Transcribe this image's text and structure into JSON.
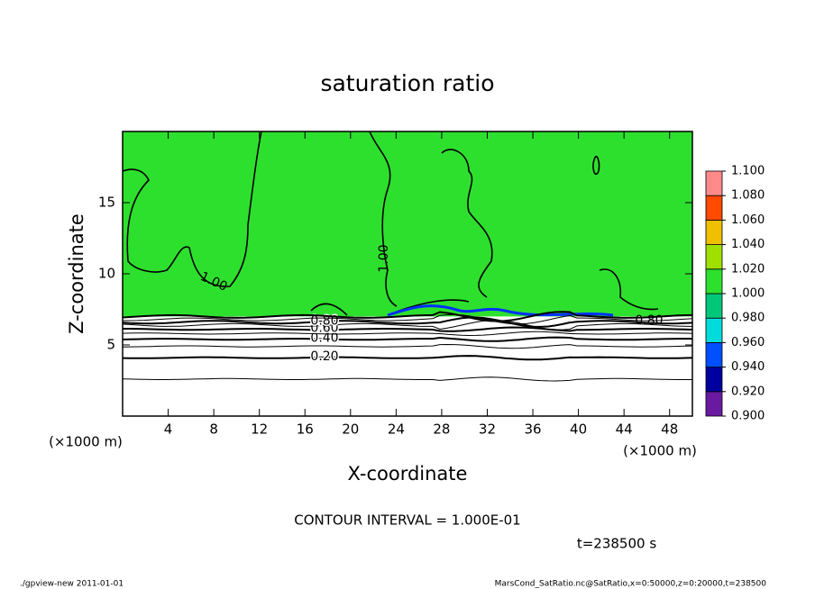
{
  "chart_data": {
    "type": "contour",
    "title": "saturation ratio",
    "x_label": "X-coordinate",
    "y_label": "Z-coordinate",
    "x_unit": "(×1000 m)",
    "xlim": [
      0,
      50
    ],
    "ylim": [
      0,
      20
    ],
    "xticks": [
      4,
      8,
      12,
      16,
      20,
      24,
      28,
      32,
      36,
      40,
      44,
      48
    ],
    "yticks": [
      5,
      10,
      15
    ],
    "contour_levels": [
      0.1,
      0.2,
      0.3,
      0.4,
      0.5,
      0.6,
      0.7,
      0.8,
      0.9,
      1.0
    ],
    "contour_z": [
      2.6,
      4.1,
      4.9,
      5.4,
      5.8,
      6.1,
      6.4,
      6.6,
      6.8,
      7.0
    ],
    "contour_labels": [
      null,
      "0.20",
      null,
      "0.40",
      null,
      "0.60",
      null,
      "0.80",
      null,
      "1.00"
    ],
    "colorbar": {
      "levels": [
        {
          "value": 0.9,
          "label": "0.900"
        },
        {
          "value": 0.92,
          "label": "0.920"
        },
        {
          "value": 0.94,
          "label": "0.940"
        },
        {
          "value": 0.96,
          "label": "0.960"
        },
        {
          "value": 0.98,
          "label": "0.980"
        },
        {
          "value": 1.0,
          "label": "1.000"
        },
        {
          "value": 1.02,
          "label": "1.020"
        },
        {
          "value": 1.04,
          "label": "1.040"
        },
        {
          "value": 1.06,
          "label": "1.060"
        },
        {
          "value": 1.08,
          "label": "1.080"
        },
        {
          "value": 1.1,
          "label": "1.100"
        }
      ],
      "colors": [
        "#6a1aa0",
        "#0000a0",
        "#0050ff",
        "#00dcdc",
        "#00c878",
        "#2ee02e",
        "#a0e000",
        "#f0c000",
        "#ff4a00",
        "#ff8a8a"
      ]
    },
    "field_value": 1.0,
    "contour_interval_text": "CONTOUR INTERVAL = 1.000E-01",
    "time_text": "t=238500 s",
    "footer_left": "./gpview-new  2011-01-01",
    "footer_right": "MarsCond_SatRatio.nc@SatRatio,x=0:50000,z=0:20000,t=238500"
  }
}
